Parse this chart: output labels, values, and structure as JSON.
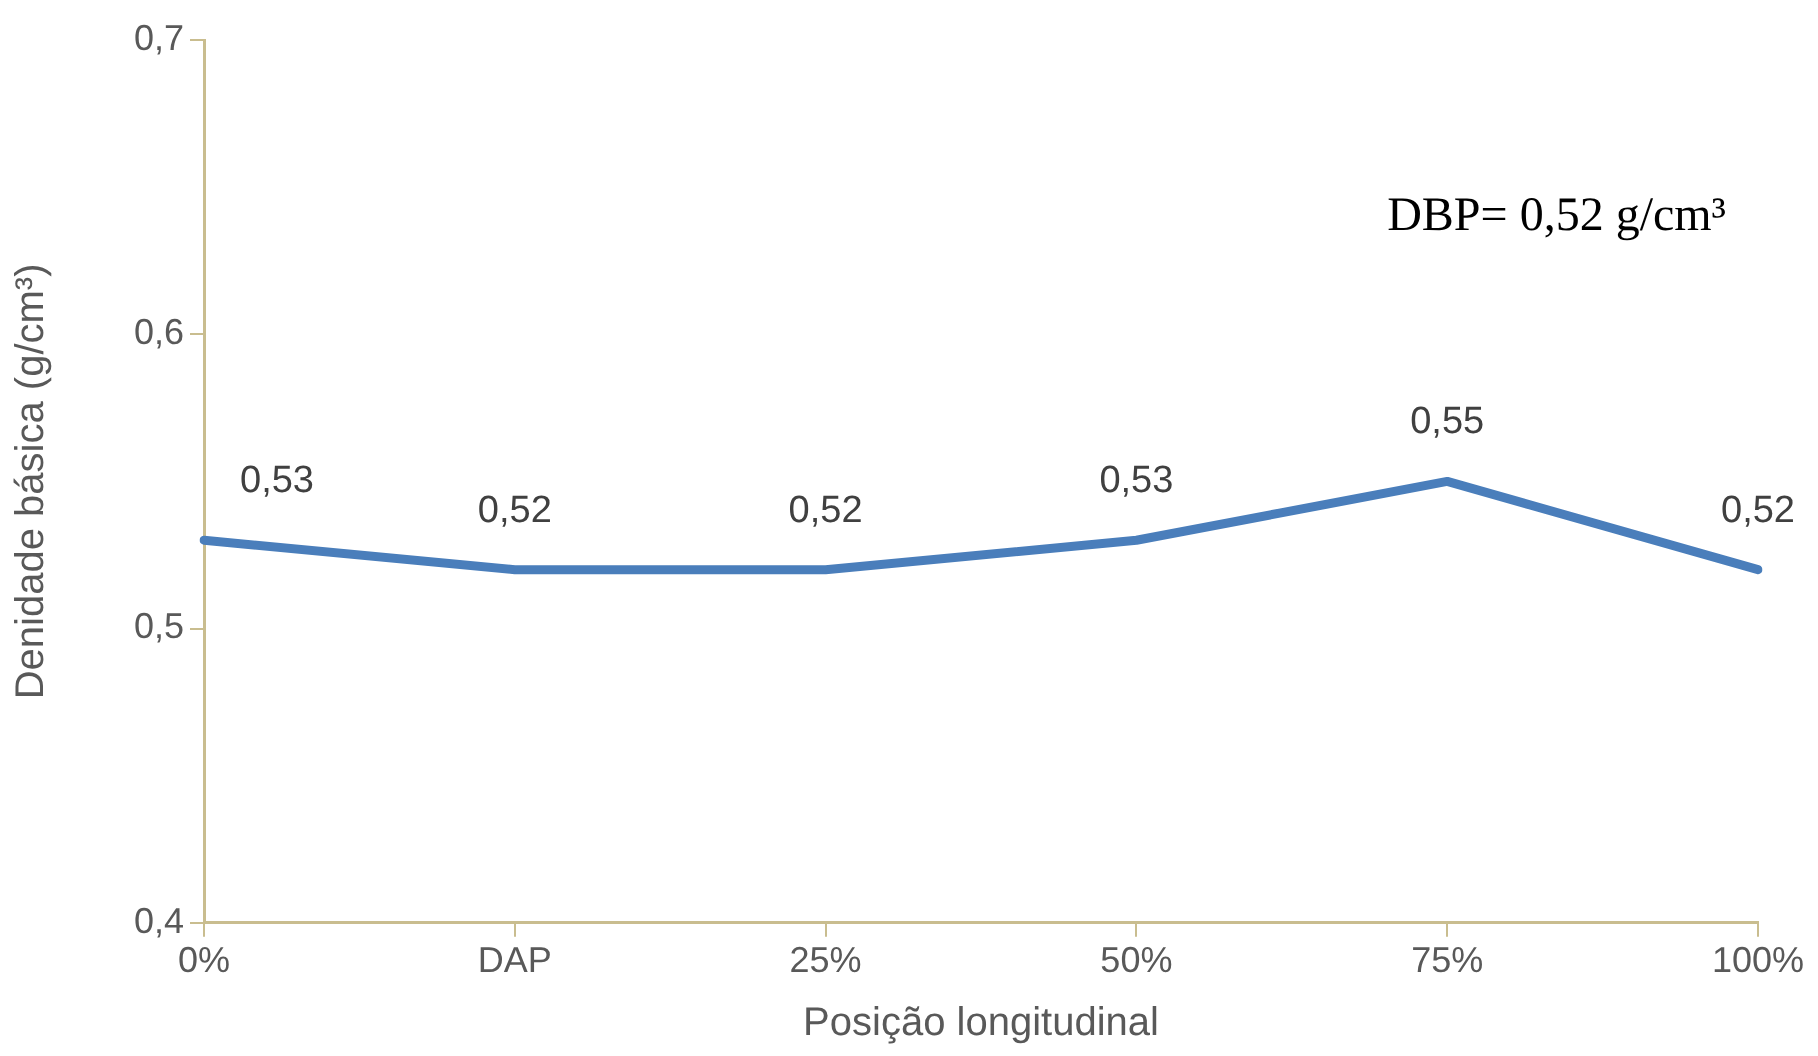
{
  "chart_data": {
    "type": "line",
    "xlabel": "Posição longitudinal",
    "ylabel": "Denidade básica (g/cm³)",
    "categories": [
      "0%",
      "DAP",
      "25%",
      "50%",
      "75%",
      "100%"
    ],
    "series": [
      {
        "color": "#4a7ebb",
        "values": [
          0.53,
          0.52,
          0.52,
          0.53,
          0.55,
          0.52
        ],
        "value_labels": [
          "0,53",
          "0,52",
          "0,52",
          "0,53",
          "0,55",
          "0,52"
        ]
      }
    ],
    "ylim": [
      0.4,
      0.7
    ],
    "yticks": [
      {
        "value": 0.4,
        "label": "0,4"
      },
      {
        "value": 0.5,
        "label": "0,5"
      },
      {
        "value": 0.6,
        "label": "0,6"
      },
      {
        "value": 0.7,
        "label": "0,7"
      }
    ],
    "grid": false,
    "legend": false,
    "marker": "none",
    "line_style": "solid",
    "annotations": [
      "DBP= 0,52 g/cm³"
    ]
  }
}
